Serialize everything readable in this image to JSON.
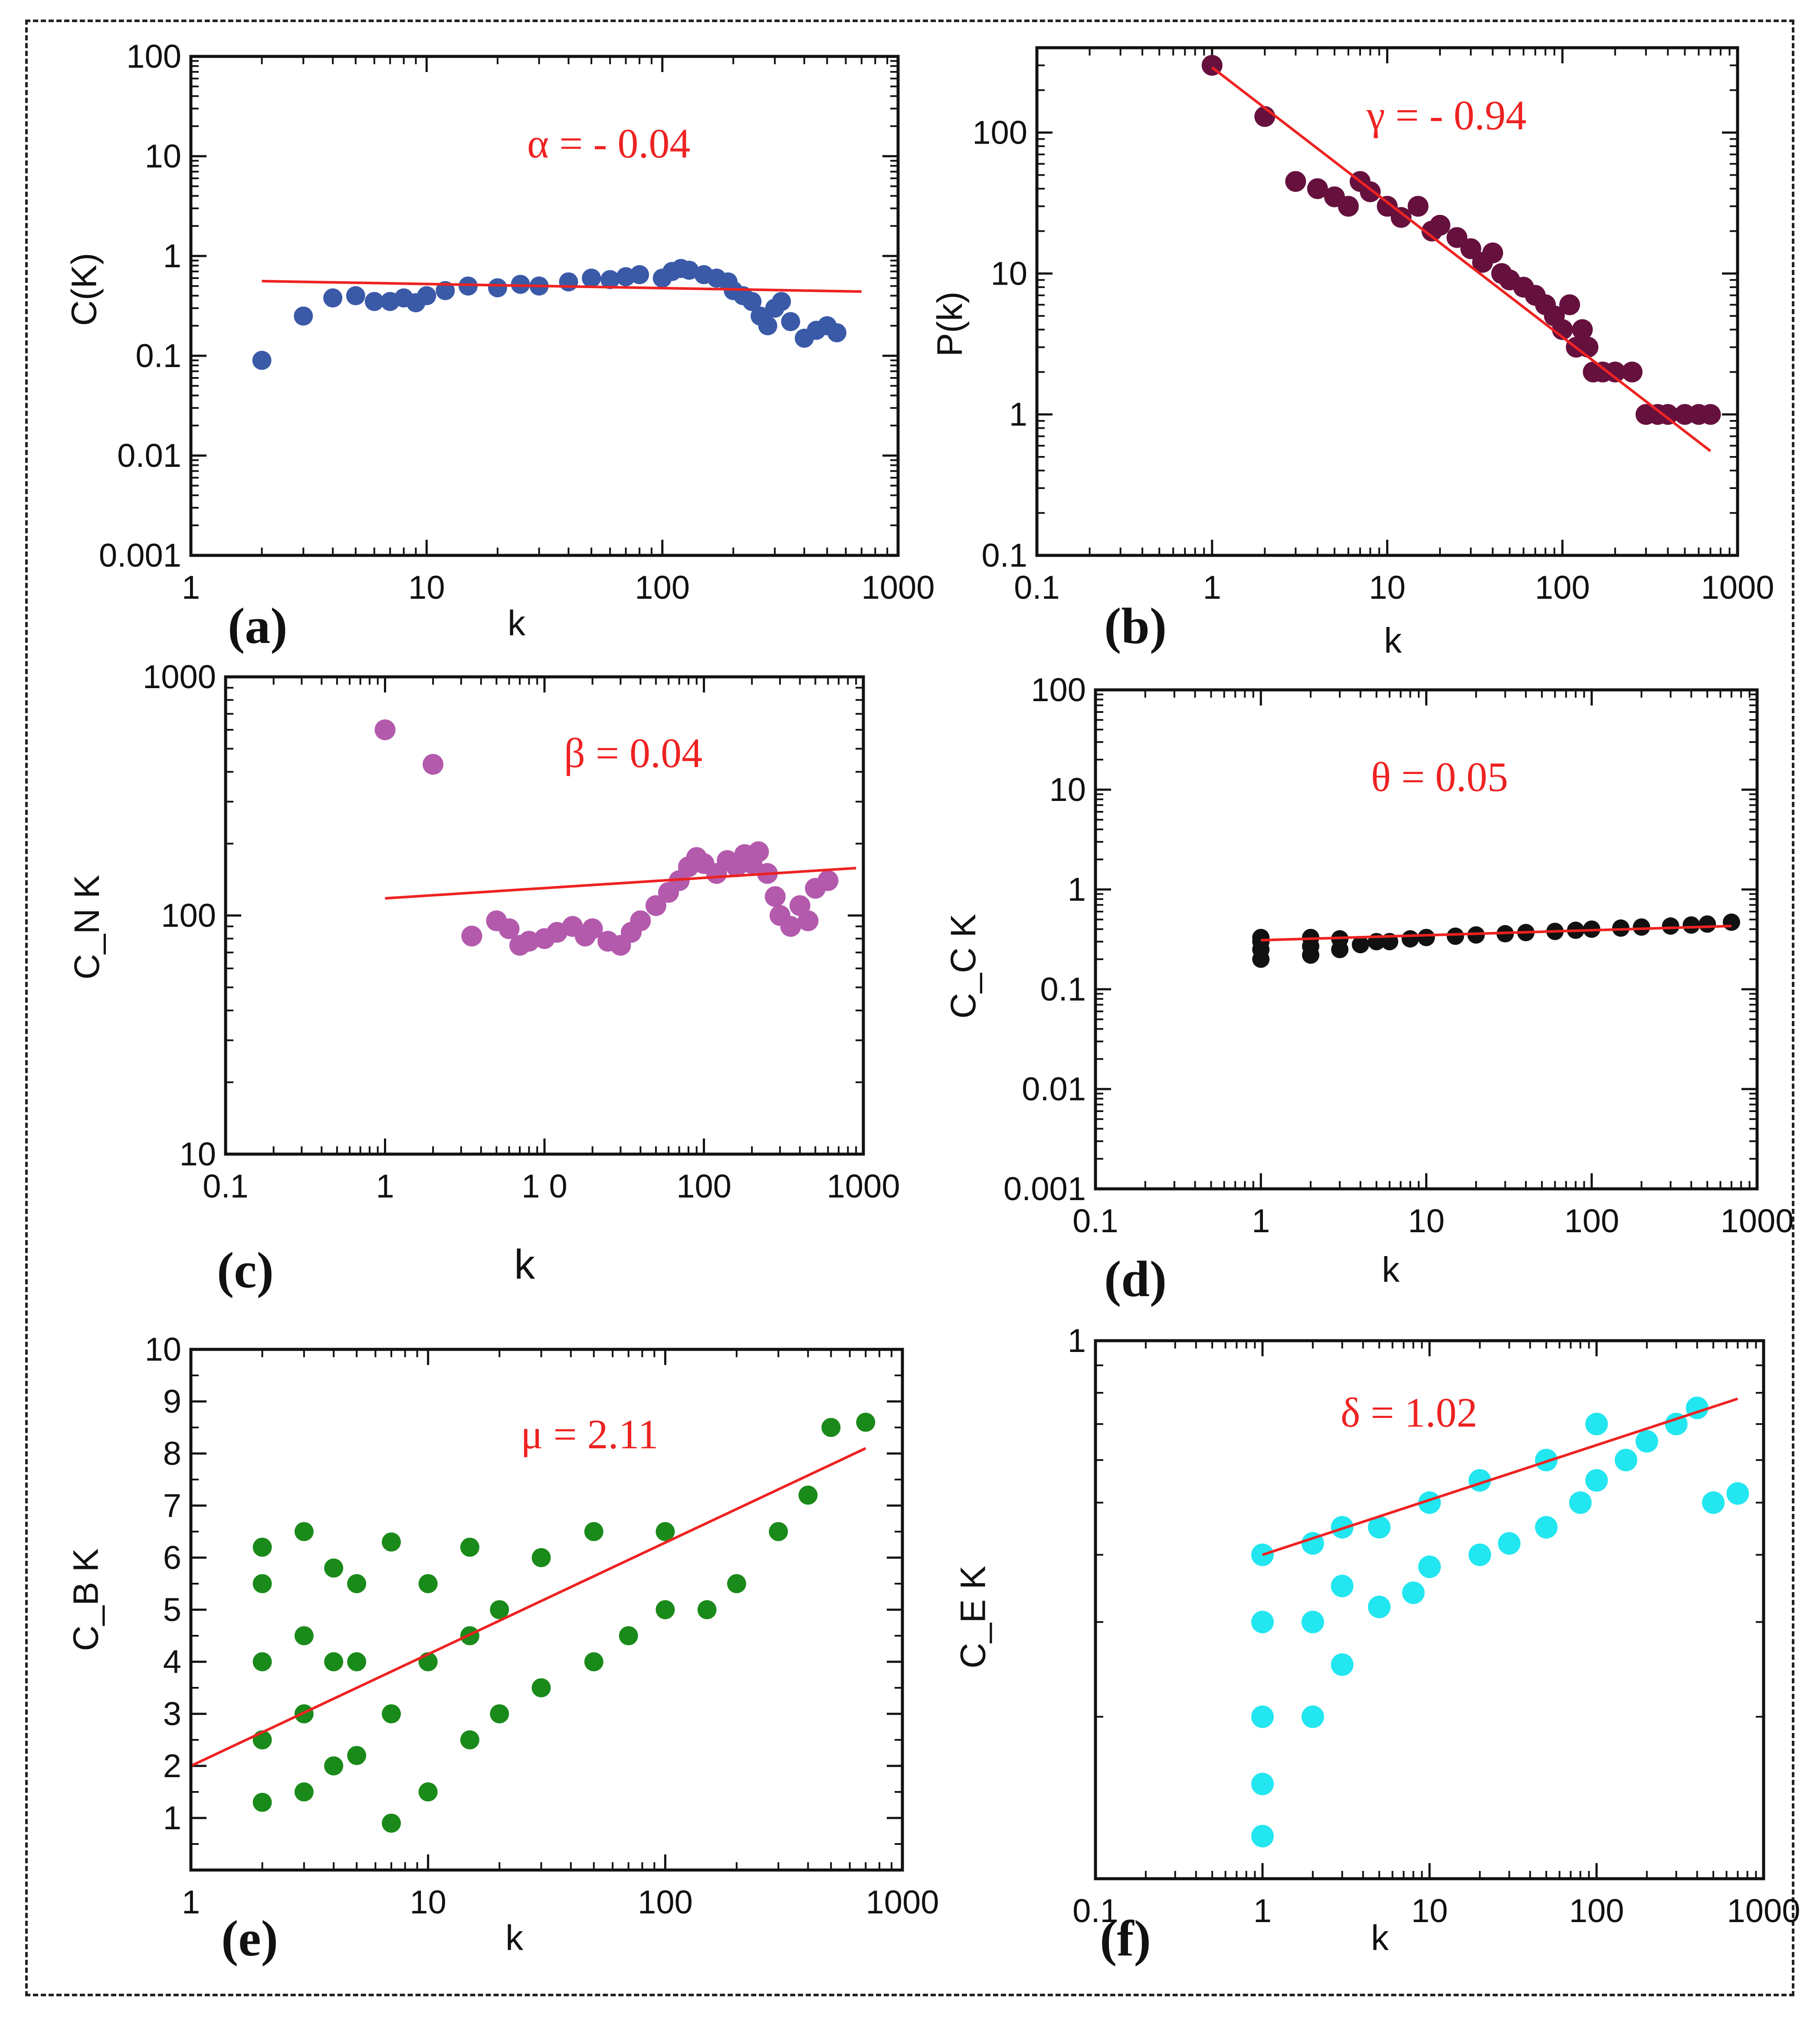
{
  "chart_data": [
    {
      "id": "a",
      "type": "scatter",
      "panel_label": "(a)",
      "xlabel": "k",
      "ylabel": "C(K)",
      "xscale": "log",
      "yscale": "log",
      "xlim": [
        1,
        1000
      ],
      "ylim": [
        0.001,
        100
      ],
      "xticks": [
        1,
        10,
        100,
        1000
      ],
      "xtick_labels": [
        "1",
        "10",
        "100",
        "1000"
      ],
      "yticks": [
        0.001,
        0.01,
        0.1,
        1,
        10,
        100
      ],
      "ytick_labels": [
        "0.001",
        "0.01",
        "0.1",
        "1",
        "10",
        "100"
      ],
      "point_color": "#3a5aa8",
      "points": [
        [
          2,
          0.09
        ],
        [
          3,
          0.25
        ],
        [
          4,
          0.38
        ],
        [
          5,
          0.4
        ],
        [
          6,
          0.35
        ],
        [
          7,
          0.35
        ],
        [
          8,
          0.38
        ],
        [
          9,
          0.34
        ],
        [
          10,
          0.4
        ],
        [
          12,
          0.45
        ],
        [
          15,
          0.5
        ],
        [
          20,
          0.48
        ],
        [
          25,
          0.52
        ],
        [
          30,
          0.5
        ],
        [
          40,
          0.55
        ],
        [
          50,
          0.6
        ],
        [
          60,
          0.58
        ],
        [
          70,
          0.62
        ],
        [
          80,
          0.65
        ],
        [
          100,
          0.6
        ],
        [
          110,
          0.7
        ],
        [
          120,
          0.75
        ],
        [
          130,
          0.72
        ],
        [
          150,
          0.65
        ],
        [
          170,
          0.6
        ],
        [
          190,
          0.55
        ],
        [
          200,
          0.45
        ],
        [
          220,
          0.4
        ],
        [
          240,
          0.35
        ],
        [
          260,
          0.25
        ],
        [
          280,
          0.2
        ],
        [
          300,
          0.3
        ],
        [
          320,
          0.35
        ],
        [
          350,
          0.22
        ],
        [
          400,
          0.15
        ],
        [
          450,
          0.18
        ],
        [
          500,
          0.2
        ],
        [
          550,
          0.17
        ]
      ],
      "fit_line": [
        [
          2,
          0.56
        ],
        [
          700,
          0.44
        ]
      ],
      "annotation": "α = - 0.04"
    },
    {
      "id": "b",
      "type": "scatter",
      "panel_label": "(b)",
      "xlabel": "k",
      "ylabel": "P(k)",
      "xscale": "log",
      "yscale": "log",
      "xlim": [
        0.1,
        1000
      ],
      "ylim": [
        0.1,
        400
      ],
      "xticks": [
        0.1,
        1,
        10,
        100,
        1000
      ],
      "xtick_labels": [
        "0.1",
        "1",
        "10",
        "100",
        "1000"
      ],
      "yticks": [
        0.1,
        1,
        10,
        100
      ],
      "ytick_labels": [
        "0.1",
        "1",
        "10",
        "100"
      ],
      "point_color": "#66103e",
      "points": [
        [
          1,
          300
        ],
        [
          2,
          130
        ],
        [
          3,
          45
        ],
        [
          4,
          40
        ],
        [
          5,
          35
        ],
        [
          6,
          30
        ],
        [
          7,
          45
        ],
        [
          8,
          38
        ],
        [
          10,
          30
        ],
        [
          12,
          25
        ],
        [
          15,
          30
        ],
        [
          18,
          20
        ],
        [
          20,
          22
        ],
        [
          25,
          18
        ],
        [
          30,
          15
        ],
        [
          35,
          12
        ],
        [
          40,
          14
        ],
        [
          45,
          10
        ],
        [
          50,
          9
        ],
        [
          60,
          8
        ],
        [
          70,
          7
        ],
        [
          80,
          6
        ],
        [
          90,
          5
        ],
        [
          100,
          4
        ],
        [
          110,
          6
        ],
        [
          120,
          3
        ],
        [
          130,
          4
        ],
        [
          140,
          3
        ],
        [
          150,
          2
        ],
        [
          170,
          2
        ],
        [
          200,
          2
        ],
        [
          250,
          2
        ],
        [
          300,
          1
        ],
        [
          350,
          1
        ],
        [
          400,
          1
        ],
        [
          500,
          1
        ],
        [
          600,
          1
        ],
        [
          700,
          1
        ]
      ],
      "fit_line": [
        [
          1,
          290
        ],
        [
          700,
          0.55
        ]
      ],
      "annotation": "γ = - 0.94"
    },
    {
      "id": "c",
      "type": "scatter",
      "panel_label": "(c)",
      "xlabel": "k",
      "ylabel": "C_N K",
      "xscale": "log",
      "yscale": "log",
      "xlim": [
        0.1,
        1000
      ],
      "ylim": [
        10,
        1000
      ],
      "xticks": [
        0.1,
        1,
        10,
        100,
        1000
      ],
      "xtick_labels": [
        "0.1",
        "1",
        "1 0",
        "100",
        "1000"
      ],
      "yticks": [
        10,
        100,
        1000
      ],
      "ytick_labels": [
        "10",
        "100",
        "1000"
      ],
      "point_color": "#b35aad",
      "points": [
        [
          1,
          600
        ],
        [
          2,
          430
        ],
        [
          3.5,
          82
        ],
        [
          5,
          95
        ],
        [
          6,
          88
        ],
        [
          7,
          75
        ],
        [
          8,
          78
        ],
        [
          10,
          80
        ],
        [
          12,
          85
        ],
        [
          15,
          90
        ],
        [
          18,
          82
        ],
        [
          20,
          88
        ],
        [
          25,
          78
        ],
        [
          30,
          75
        ],
        [
          35,
          85
        ],
        [
          40,
          95
        ],
        [
          50,
          110
        ],
        [
          60,
          125
        ],
        [
          70,
          140
        ],
        [
          80,
          160
        ],
        [
          90,
          175
        ],
        [
          100,
          165
        ],
        [
          120,
          150
        ],
        [
          140,
          170
        ],
        [
          160,
          160
        ],
        [
          180,
          180
        ],
        [
          200,
          165
        ],
        [
          220,
          185
        ],
        [
          250,
          150
        ],
        [
          280,
          120
        ],
        [
          300,
          100
        ],
        [
          350,
          90
        ],
        [
          400,
          110
        ],
        [
          450,
          95
        ],
        [
          500,
          130
        ],
        [
          600,
          140
        ]
      ],
      "fit_line": [
        [
          1,
          118
        ],
        [
          900,
          158
        ]
      ],
      "annotation": "β = 0.04"
    },
    {
      "id": "d",
      "type": "scatter",
      "panel_label": "(d)",
      "xlabel": "k",
      "ylabel": "C_C K",
      "xscale": "log",
      "yscale": "log",
      "xlim": [
        0.1,
        1000
      ],
      "ylim": [
        0.001,
        100
      ],
      "xticks": [
        0.1,
        1,
        10,
        100,
        1000
      ],
      "xtick_labels": [
        "0.1",
        "1",
        "10",
        "100",
        "1000"
      ],
      "yticks": [
        0.001,
        0.01,
        0.1,
        1,
        10,
        100
      ],
      "ytick_labels": [
        "0.001",
        "0.01",
        "0.1",
        "1",
        "10",
        "100"
      ],
      "point_color": "#111111",
      "points": [
        [
          1,
          0.2
        ],
        [
          1,
          0.25
        ],
        [
          1,
          0.3
        ],
        [
          1,
          0.33
        ],
        [
          2,
          0.22
        ],
        [
          2,
          0.27
        ],
        [
          2,
          0.33
        ],
        [
          3,
          0.25
        ],
        [
          3,
          0.32
        ],
        [
          4,
          0.28
        ],
        [
          5,
          0.3
        ],
        [
          6,
          0.3
        ],
        [
          8,
          0.32
        ],
        [
          10,
          0.33
        ],
        [
          15,
          0.34
        ],
        [
          20,
          0.35
        ],
        [
          30,
          0.36
        ],
        [
          40,
          0.37
        ],
        [
          60,
          0.38
        ],
        [
          80,
          0.39
        ],
        [
          100,
          0.4
        ],
        [
          150,
          0.41
        ],
        [
          200,
          0.42
        ],
        [
          300,
          0.43
        ],
        [
          400,
          0.44
        ],
        [
          500,
          0.45
        ],
        [
          700,
          0.47
        ]
      ],
      "fit_line": [
        [
          1,
          0.31
        ],
        [
          700,
          0.43
        ]
      ],
      "annotation": "θ = 0.05"
    },
    {
      "id": "e",
      "type": "scatter",
      "panel_label": "(e)",
      "xlabel": "k",
      "ylabel": "C_B K",
      "xscale": "log",
      "yscale": "linear",
      "xlim": [
        1,
        1000
      ],
      "ylim": [
        0,
        10
      ],
      "xticks": [
        1,
        10,
        100,
        1000
      ],
      "xtick_labels": [
        "1",
        "10",
        "100",
        "1000"
      ],
      "yticks": [
        1,
        2,
        3,
        4,
        5,
        6,
        7,
        8,
        9,
        10
      ],
      "ytick_labels": [
        "1",
        "2",
        "3",
        "4",
        "5",
        "6",
        "7",
        "8",
        "9",
        "10"
      ],
      "point_color": "#1a8a1a",
      "points": [
        [
          2,
          1.3
        ],
        [
          2,
          2.5
        ],
        [
          2,
          4
        ],
        [
          2,
          5.5
        ],
        [
          2,
          6.2
        ],
        [
          3,
          1.5
        ],
        [
          3,
          3
        ],
        [
          3,
          4.5
        ],
        [
          3,
          6.5
        ],
        [
          4,
          2
        ],
        [
          4,
          4
        ],
        [
          4,
          5.8
        ],
        [
          5,
          2.2
        ],
        [
          5,
          4
        ],
        [
          5,
          5.5
        ],
        [
          7,
          0.9
        ],
        [
          7,
          3
        ],
        [
          7,
          6.3
        ],
        [
          10,
          1.5
        ],
        [
          10,
          4
        ],
        [
          10,
          5.5
        ],
        [
          15,
          2.5
        ],
        [
          15,
          4.5
        ],
        [
          15,
          6.2
        ],
        [
          20,
          3
        ],
        [
          20,
          5
        ],
        [
          30,
          3.5
        ],
        [
          30,
          6
        ],
        [
          50,
          4
        ],
        [
          50,
          6.5
        ],
        [
          70,
          4.5
        ],
        [
          100,
          5
        ],
        [
          100,
          6.5
        ],
        [
          150,
          5
        ],
        [
          200,
          5.5
        ],
        [
          300,
          6.5
        ],
        [
          400,
          7.2
        ],
        [
          500,
          8.5
        ],
        [
          700,
          8.6
        ]
      ],
      "fit_line": [
        [
          1,
          2.0
        ],
        [
          700,
          8.1
        ]
      ],
      "annotation": "μ = 2.11"
    },
    {
      "id": "f",
      "type": "scatter",
      "panel_label": "(f)",
      "xlabel": "k",
      "ylabel": "C_E K",
      "xscale": "log",
      "yscale": "log",
      "xlim": [
        0.1,
        1000
      ],
      "ylim": [
        0.1,
        1
      ],
      "xticks": [
        0.1,
        1,
        10,
        100,
        1000
      ],
      "xtick_labels": [
        "0.1",
        "1",
        "10",
        "100",
        "1000"
      ],
      "yticks": [
        1
      ],
      "ytick_labels": [
        "1"
      ],
      "point_color": "#22e6f0",
      "points": [
        [
          1,
          0.12
        ],
        [
          1,
          0.15
        ],
        [
          1,
          0.2
        ],
        [
          1,
          0.3
        ],
        [
          1,
          0.4
        ],
        [
          2,
          0.2
        ],
        [
          2,
          0.3
        ],
        [
          2,
          0.42
        ],
        [
          3,
          0.25
        ],
        [
          3,
          0.35
        ],
        [
          3,
          0.45
        ],
        [
          5,
          0.32
        ],
        [
          5,
          0.45
        ],
        [
          8,
          0.34
        ],
        [
          10,
          0.38
        ],
        [
          10,
          0.5
        ],
        [
          20,
          0.4
        ],
        [
          20,
          0.55
        ],
        [
          30,
          0.42
        ],
        [
          50,
          0.45
        ],
        [
          50,
          0.6
        ],
        [
          80,
          0.5
        ],
        [
          100,
          0.55
        ],
        [
          100,
          0.7
        ],
        [
          150,
          0.6
        ],
        [
          200,
          0.65
        ],
        [
          300,
          0.7
        ],
        [
          400,
          0.75
        ],
        [
          500,
          0.5
        ],
        [
          700,
          0.52
        ]
      ],
      "fit_line": [
        [
          1,
          0.4
        ],
        [
          700,
          0.78
        ]
      ],
      "annotation": "δ = 1.02"
    }
  ]
}
